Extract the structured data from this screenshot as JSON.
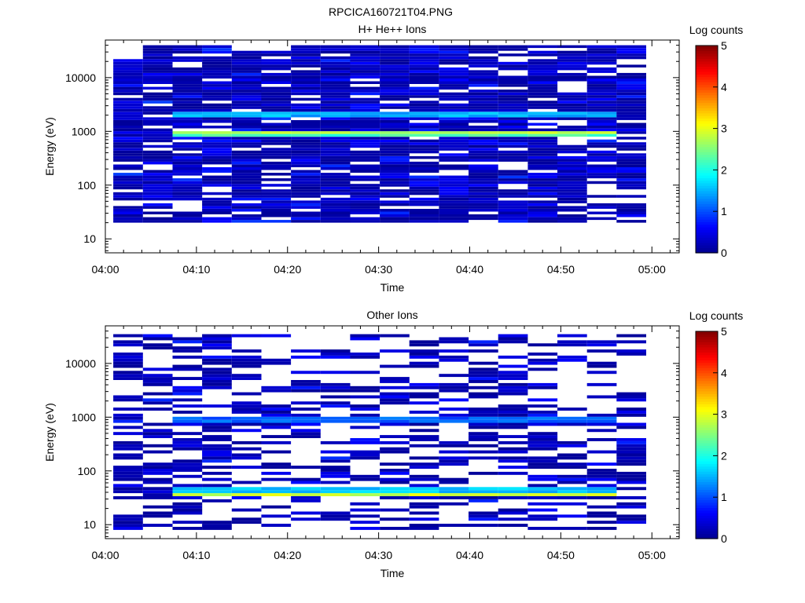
{
  "figure_title": "RPCICA160721T04.PNG",
  "colors": {
    "colormap": [
      "#00008f",
      "#0000ff",
      "#0080ff",
      "#00ffff",
      "#80ff80",
      "#ffff00",
      "#ff8000",
      "#ff0000",
      "#800000"
    ]
  },
  "chart_data": [
    {
      "type": "heatmap",
      "title": "H+ He++ Ions",
      "xlabel": "Time",
      "ylabel": "Energy (eV)",
      "x_ticks": [
        "04:00",
        "04:10",
        "04:20",
        "04:30",
        "04:40",
        "04:50",
        "05:00"
      ],
      "xlim": [
        "04:00",
        "05:03"
      ],
      "y_scale": "log",
      "ylim": [
        5.5,
        50000
      ],
      "y_ticks": [
        "10",
        "100",
        "1000",
        "10000"
      ],
      "colorbar": {
        "label": "Log counts",
        "range": [
          0,
          5
        ],
        "ticks": [
          "0",
          "1",
          "2",
          "3",
          "4",
          "5"
        ]
      },
      "time_bins": [
        "04:02:30",
        "04:05:45",
        "04:09:00",
        "04:12:15",
        "04:15:30",
        "04:18:45",
        "04:22:00",
        "04:25:15",
        "04:28:30",
        "04:31:45",
        "04:35:00",
        "04:38:15",
        "04:41:30",
        "04:44:45",
        "04:48:00",
        "04:51:15",
        "04:54:30",
        "04:57:45"
      ],
      "energy_range_eV": [
        20,
        40000
      ],
      "bands": [
        {
          "energy_eV": 1900,
          "log_counts": 1.5
        },
        {
          "energy_eV": 850,
          "log_counts": 2.8
        },
        {
          "energy_eV": 780,
          "log_counts": 2.2
        }
      ]
    },
    {
      "type": "heatmap",
      "title": "Other Ions",
      "xlabel": "Time",
      "ylabel": "Energy (eV)",
      "x_ticks": [
        "04:00",
        "04:10",
        "04:20",
        "04:30",
        "04:40",
        "04:50",
        "05:00"
      ],
      "xlim": [
        "04:00",
        "05:03"
      ],
      "y_scale": "log",
      "ylim": [
        5.5,
        50000
      ],
      "y_ticks": [
        "10",
        "100",
        "1000",
        "10000"
      ],
      "colorbar": {
        "label": "Log counts",
        "range": [
          0,
          5
        ],
        "ticks": [
          "0",
          "1",
          "2",
          "3",
          "4",
          "5"
        ]
      },
      "time_bins": [
        "04:02:30",
        "04:05:45",
        "04:09:00",
        "04:12:15",
        "04:15:30",
        "04:18:45",
        "04:22:00",
        "04:25:15",
        "04:28:30",
        "04:31:45",
        "04:35:00",
        "04:38:15",
        "04:41:30",
        "04:44:45",
        "04:48:00",
        "04:51:15",
        "04:54:30",
        "04:57:45"
      ],
      "energy_range_eV": [
        8,
        35000
      ],
      "bands": [
        {
          "energy_eV": 37,
          "log_counts": 2.6
        },
        {
          "energy_eV": 33,
          "log_counts": 2.9
        },
        {
          "energy_eV": 41,
          "log_counts": 1.6
        },
        {
          "energy_eV": 830,
          "log_counts": 1.1
        }
      ]
    }
  ]
}
